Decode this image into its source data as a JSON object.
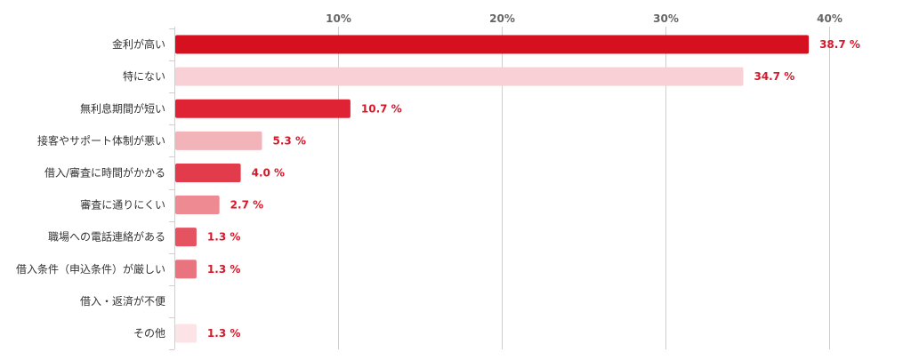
{
  "chart_data": {
    "type": "bar",
    "orientation": "horizontal",
    "title": "",
    "xlabel": "",
    "ylabel": "",
    "xlim": [
      0,
      42
    ],
    "ticks": [
      10,
      20,
      30,
      40
    ],
    "tick_labels": [
      "10%",
      "20%",
      "30%",
      "40%"
    ],
    "grid": true,
    "legend": "none",
    "categories": [
      "金利が高い",
      "特にない",
      "無利息期間が短い",
      "接客やサポート体制が悪い",
      "借入/審査に時間がかかる",
      "審査に通りにくい",
      "職場への電話連絡がある",
      "借入条件（申込条件）が厳しい",
      "借入・返済が不便",
      "その他"
    ],
    "values": [
      38.7,
      34.7,
      10.7,
      5.3,
      4.0,
      2.7,
      1.3,
      1.3,
      0,
      1.3
    ],
    "value_labels": [
      "38.7 %",
      "34.7 %",
      "10.7 %",
      "5.3 %",
      "4.0 %",
      "2.7 %",
      "1.3 %",
      "1.3 %",
      "",
      "1.3 %"
    ],
    "colors": [
      "#d7101f",
      "#f8d0d5",
      "#df2335",
      "#f3b4b9",
      "#e23b4b",
      "#ee8a92",
      "#e55260",
      "#ea7380",
      "#f4a1a8",
      "#fbe3e6"
    ],
    "value_label_color": "#d7182a"
  }
}
